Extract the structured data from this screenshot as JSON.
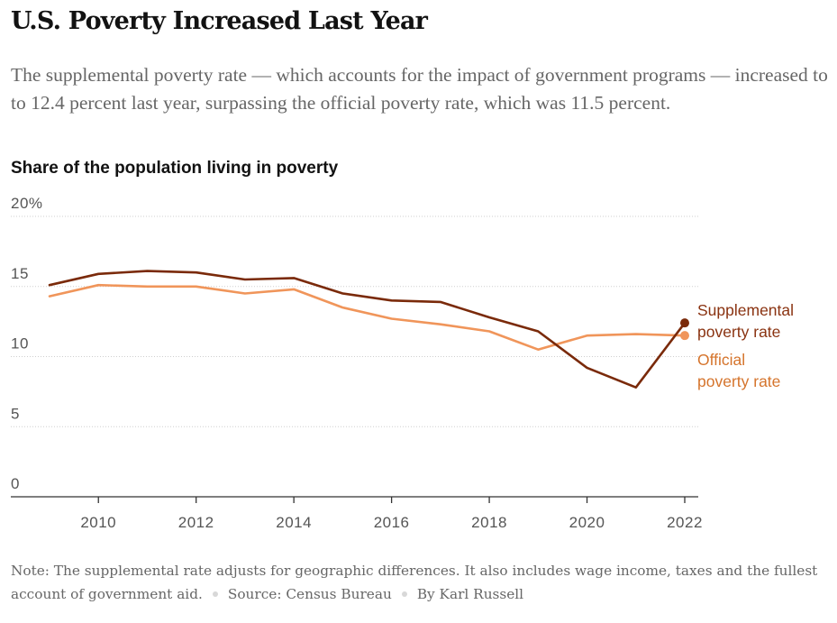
{
  "headline": "U.S. Poverty Increased Last Year",
  "dek": "The supplemental poverty rate — which accounts for the impact of government programs — increased to to 12.4 percent last year, surpassing the official poverty rate, which was 11.5 percent.",
  "chart_title": "Share of the population living in poverty",
  "note": {
    "text": "Note: The supplemental rate adjusts for geographic differences. It also includes wage income, taxes and the fullest account of government aid.",
    "source": "Source: Census Bureau",
    "byline": "By Karl Russell"
  },
  "chart_data": {
    "type": "line",
    "title": "Share of the population living in poverty",
    "xlabel": "",
    "ylabel": "",
    "xlim": [
      2009,
      2022
    ],
    "ylim": [
      0,
      20
    ],
    "y_ticks": [
      {
        "value": 0,
        "label": "0"
      },
      {
        "value": 5,
        "label": "5"
      },
      {
        "value": 10,
        "label": "10"
      },
      {
        "value": 15,
        "label": "15"
      },
      {
        "value": 20,
        "label": "20%"
      }
    ],
    "x_ticks": [
      {
        "value": 2010,
        "label": "2010"
      },
      {
        "value": 2012,
        "label": "2012"
      },
      {
        "value": 2014,
        "label": "2014"
      },
      {
        "value": 2016,
        "label": "2016"
      },
      {
        "value": 2018,
        "label": "2018"
      },
      {
        "value": 2020,
        "label": "2020"
      },
      {
        "value": 2022,
        "label": "2022"
      }
    ],
    "grid": "horizontal",
    "x": [
      2009,
      2010,
      2011,
      2012,
      2013,
      2014,
      2015,
      2016,
      2017,
      2018,
      2019,
      2020,
      2021,
      2022
    ],
    "series": [
      {
        "key": "official",
        "label_lines": [
          "Official",
          "poverty rate"
        ],
        "color": "#f0955a",
        "label_color": "#d5742c",
        "values": [
          14.3,
          15.1,
          15.0,
          15.0,
          14.5,
          14.8,
          13.5,
          12.7,
          12.3,
          11.8,
          10.5,
          11.5,
          11.6,
          11.5
        ]
      },
      {
        "key": "supplemental",
        "label_lines": [
          "Supplemental",
          "poverty rate"
        ],
        "color": "#7a2a0a",
        "label_color": "#8a3311",
        "values": [
          15.1,
          15.9,
          16.1,
          16.0,
          15.5,
          15.6,
          14.5,
          14.0,
          13.9,
          12.8,
          11.8,
          9.2,
          7.8,
          12.4
        ]
      }
    ]
  }
}
